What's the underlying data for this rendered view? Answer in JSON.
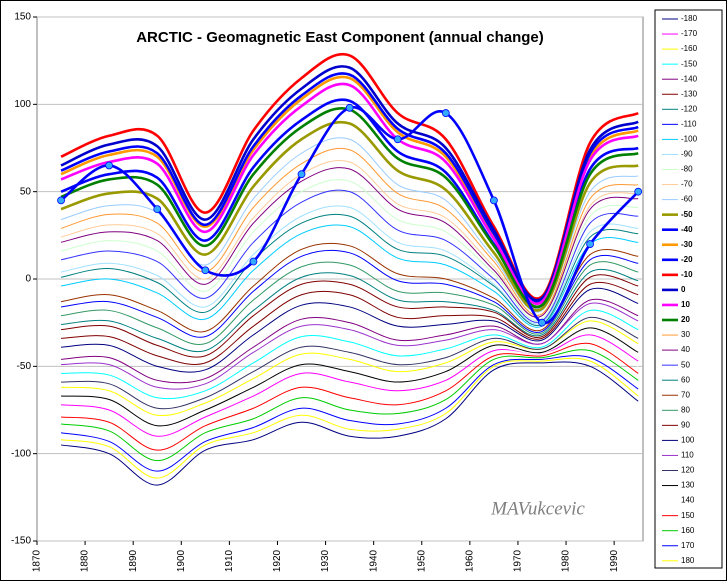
{
  "chart_data": {
    "type": "line",
    "title": "ARCTIC - Geomagnetic East Component (annual change)",
    "annotation": "MAVukcevic",
    "x": [
      1875,
      1885,
      1895,
      1905,
      1915,
      1925,
      1935,
      1945,
      1955,
      1965,
      1975,
      1985,
      1995
    ],
    "xlim": [
      1870,
      1996
    ],
    "xticks": [
      1870,
      1880,
      1890,
      1900,
      1910,
      1920,
      1930,
      1940,
      1950,
      1960,
      1970,
      1980,
      1990
    ],
    "ylim": [
      -150,
      150
    ],
    "yticks": [
      -150,
      -100,
      -50,
      0,
      50,
      100,
      150
    ],
    "grid": true,
    "legend": "right",
    "series": [
      {
        "name": "-180",
        "color": "#000080",
        "values": [
          -95,
          -100,
          -118,
          -98,
          -92,
          -82,
          -90,
          -90,
          -80,
          -52,
          -48,
          -50,
          -70
        ]
      },
      {
        "name": "-170",
        "color": "#ff00ff",
        "values": [
          -72,
          -75,
          -90,
          -79,
          -67,
          -54,
          -59,
          -64,
          -58,
          -41,
          -43,
          -32,
          -47
        ]
      },
      {
        "name": "-160",
        "color": "#ffff00",
        "values": [
          -62,
          -64,
          -78,
          -71,
          -57,
          -43,
          -46,
          -53,
          -48,
          -36,
          -40,
          -24,
          -37
        ]
      },
      {
        "name": "-150",
        "color": "#00ffff",
        "values": [
          -54,
          -55,
          -68,
          -64,
          -48,
          -33,
          -36,
          -44,
          -40,
          -32,
          -39,
          -18,
          -29
        ]
      },
      {
        "name": "-140",
        "color": "#800080",
        "values": [
          -46,
          -45,
          -58,
          -57,
          -39,
          -23,
          -25,
          -35,
          -32,
          -27,
          -37,
          -12,
          -21
        ]
      },
      {
        "name": "-130",
        "color": "#800000",
        "values": [
          -34,
          -33,
          -44,
          -48,
          -27,
          -9,
          -9,
          -22,
          -21,
          -22,
          -34,
          -3,
          -9
        ]
      },
      {
        "name": "-120",
        "color": "#008080",
        "values": [
          -26,
          -24,
          -34,
          -41,
          -18,
          1,
          2,
          -12,
          -13,
          -18,
          -32,
          4,
          -1
        ]
      },
      {
        "name": "-110",
        "color": "#0000ff",
        "values": [
          -16,
          -13,
          -22,
          -33,
          -7,
          13,
          15,
          -1,
          -3,
          -13,
          -30,
          11,
          9
        ]
      },
      {
        "name": "-100",
        "color": "#00ccff",
        "values": [
          -4,
          0,
          -8,
          -23,
          5,
          26,
          30,
          12,
          8,
          -7,
          -27,
          20,
          21
        ]
      },
      {
        "name": "-90",
        "color": "#a0e0ff",
        "values": [
          4,
          9,
          2,
          -16,
          14,
          36,
          41,
          21,
          16,
          -3,
          -25,
          27,
          29
        ]
      },
      {
        "name": "-80",
        "color": "#ccffcc",
        "values": [
          16,
          22,
          16,
          -7,
          27,
          50,
          56,
          34,
          27,
          3,
          -23,
          36,
          41
        ]
      },
      {
        "name": "-70",
        "color": "#ffcc99",
        "values": [
          24,
          31,
          26,
          0,
          35,
          60,
          67,
          43,
          35,
          7,
          -21,
          42,
          49
        ]
      },
      {
        "name": "-60",
        "color": "#99ccff",
        "values": [
          34,
          42,
          38,
          8,
          46,
          72,
          80,
          54,
          45,
          12,
          -18,
          50,
          59
        ]
      },
      {
        "name": "-50",
        "color": "#999900",
        "thick": true,
        "values": [
          40,
          49,
          46,
          14,
          53,
          80,
          89,
          62,
          51,
          15,
          -17,
          55,
          65
        ]
      },
      {
        "name": "-40",
        "color": "#0000ff",
        "thick": true,
        "values": [
          50,
          60,
          58,
          22,
          64,
          91,
          102,
          73,
          61,
          20,
          -15,
          63,
          75
        ]
      },
      {
        "name": "-30",
        "color": "#ff9900",
        "thick": true,
        "values": [
          60,
          71,
          70,
          30,
          74,
          103,
          115,
          84,
          70,
          25,
          -12,
          70,
          85
        ]
      },
      {
        "name": "-20",
        "color": "#0000ff",
        "thick": true,
        "values": [
          62,
          73,
          72,
          31,
          76,
          105,
          117,
          86,
          72,
          26,
          -12,
          72,
          87
        ]
      },
      {
        "name": "-10",
        "color": "#ff0000",
        "thick": true,
        "values": [
          70,
          82,
          82,
          38,
          85,
          115,
          128,
          95,
          80,
          30,
          -10,
          78,
          95
        ]
      },
      {
        "name": "0",
        "color": "#0000cc",
        "thick": true,
        "values": [
          65,
          77,
          76,
          34,
          80,
          109,
          121,
          89,
          75,
          28,
          -11,
          74,
          90
        ]
      },
      {
        "name": "10",
        "color": "#ff00ff",
        "thick": true,
        "values": [
          57,
          67,
          66,
          27,
          71,
          99,
          111,
          80,
          67,
          23,
          -13,
          68,
          82
        ]
      },
      {
        "name": "20",
        "color": "#008000",
        "thick": true,
        "values": [
          47,
          57,
          54,
          19,
          60,
          87,
          97,
          69,
          58,
          19,
          -15,
          60,
          72
        ]
      },
      {
        "name": "30",
        "color": "#ff9933",
        "values": [
          29,
          37,
          32,
          4,
          41,
          66,
          74,
          49,
          40,
          10,
          -20,
          46,
          54
        ]
      },
      {
        "name": "40",
        "color": "#800080",
        "values": [
          21,
          27,
          22,
          -3,
          32,
          56,
          63,
          40,
          32,
          5,
          -21,
          40,
          46
        ]
      },
      {
        "name": "50",
        "color": "#3333ff",
        "values": [
          11,
          16,
          10,
          -11,
          21,
          44,
          50,
          28,
          22,
          0,
          -24,
          32,
          36
        ]
      },
      {
        "name": "60",
        "color": "#008080",
        "values": [
          1,
          6,
          -2,
          -19,
          11,
          32,
          36,
          17,
          13,
          -4,
          -26,
          24,
          26
        ]
      },
      {
        "name": "70",
        "color": "#993300",
        "values": [
          -13,
          -9,
          -18,
          -30,
          -4,
          17,
          19,
          3,
          0,
          -11,
          -29,
          14,
          13
        ]
      },
      {
        "name": "80",
        "color": "#339966",
        "values": [
          -21,
          -18,
          -28,
          -37,
          -12,
          7,
          8,
          -7,
          -8,
          -15,
          -31,
          8,
          4
        ]
      },
      {
        "name": "90",
        "color": "#800000",
        "values": [
          -29,
          -27,
          -38,
          -44,
          -21,
          -3,
          -3,
          -16,
          -16,
          -19,
          -33,
          1,
          -4
        ]
      },
      {
        "name": "100",
        "color": "#000080",
        "values": [
          -39,
          -38,
          -50,
          -52,
          -32,
          -15,
          -16,
          -27,
          -26,
          -24,
          -35,
          -6,
          -14
        ]
      },
      {
        "name": "110",
        "color": "#9933cc",
        "values": [
          -49,
          -49,
          -62,
          -60,
          -42,
          -27,
          -29,
          -38,
          -35,
          -29,
          -37,
          -14,
          -24
        ]
      },
      {
        "name": "120",
        "color": "#333366",
        "values": [
          -59,
          -60,
          -74,
          -68,
          -53,
          -39,
          -42,
          -49,
          -45,
          -34,
          -40,
          -22,
          -34
        ]
      },
      {
        "name": "130",
        "color": "#000000",
        "values": [
          -67,
          -69,
          -84,
          -75,
          -62,
          -49,
          -53,
          -59,
          -53,
          -38,
          -42,
          -28,
          -42
        ]
      },
      {
        "name": "140",
        "color": "#ffffff",
        "values": [
          -75,
          -78,
          -94,
          -82,
          -71,
          -58,
          -64,
          -68,
          -61,
          -42,
          -43,
          -35,
          -50
        ]
      },
      {
        "name": "150",
        "color": "#ff0000",
        "values": [
          -79,
          -82,
          -98,
          -84,
          -74,
          -62,
          -68,
          -72,
          -64,
          -44,
          -44,
          -37,
          -54
        ]
      },
      {
        "name": "160",
        "color": "#00cc00",
        "values": [
          -83,
          -87,
          -104,
          -88,
          -80,
          -68,
          -75,
          -77,
          -69,
          -46,
          -45,
          -41,
          -58
        ]
      },
      {
        "name": "170",
        "color": "#0000ff",
        "values": [
          -88,
          -93,
          -110,
          -93,
          -85,
          -74,
          -81,
          -83,
          -74,
          -49,
          -46,
          -45,
          -63
        ]
      },
      {
        "name": "180",
        "color": "#ffff00",
        "values": [
          -92,
          -96,
          -114,
          -95,
          -88,
          -78,
          -86,
          -86,
          -77,
          -50,
          -47,
          -47,
          -67
        ]
      },
      {
        "color": "#0000ff",
        "thick": true,
        "markers": true,
        "marker_color": "#33aaff",
        "values": [
          45,
          65,
          40,
          5,
          10,
          60,
          98,
          80,
          95,
          45,
          -25,
          20,
          50
        ]
      }
    ]
  }
}
